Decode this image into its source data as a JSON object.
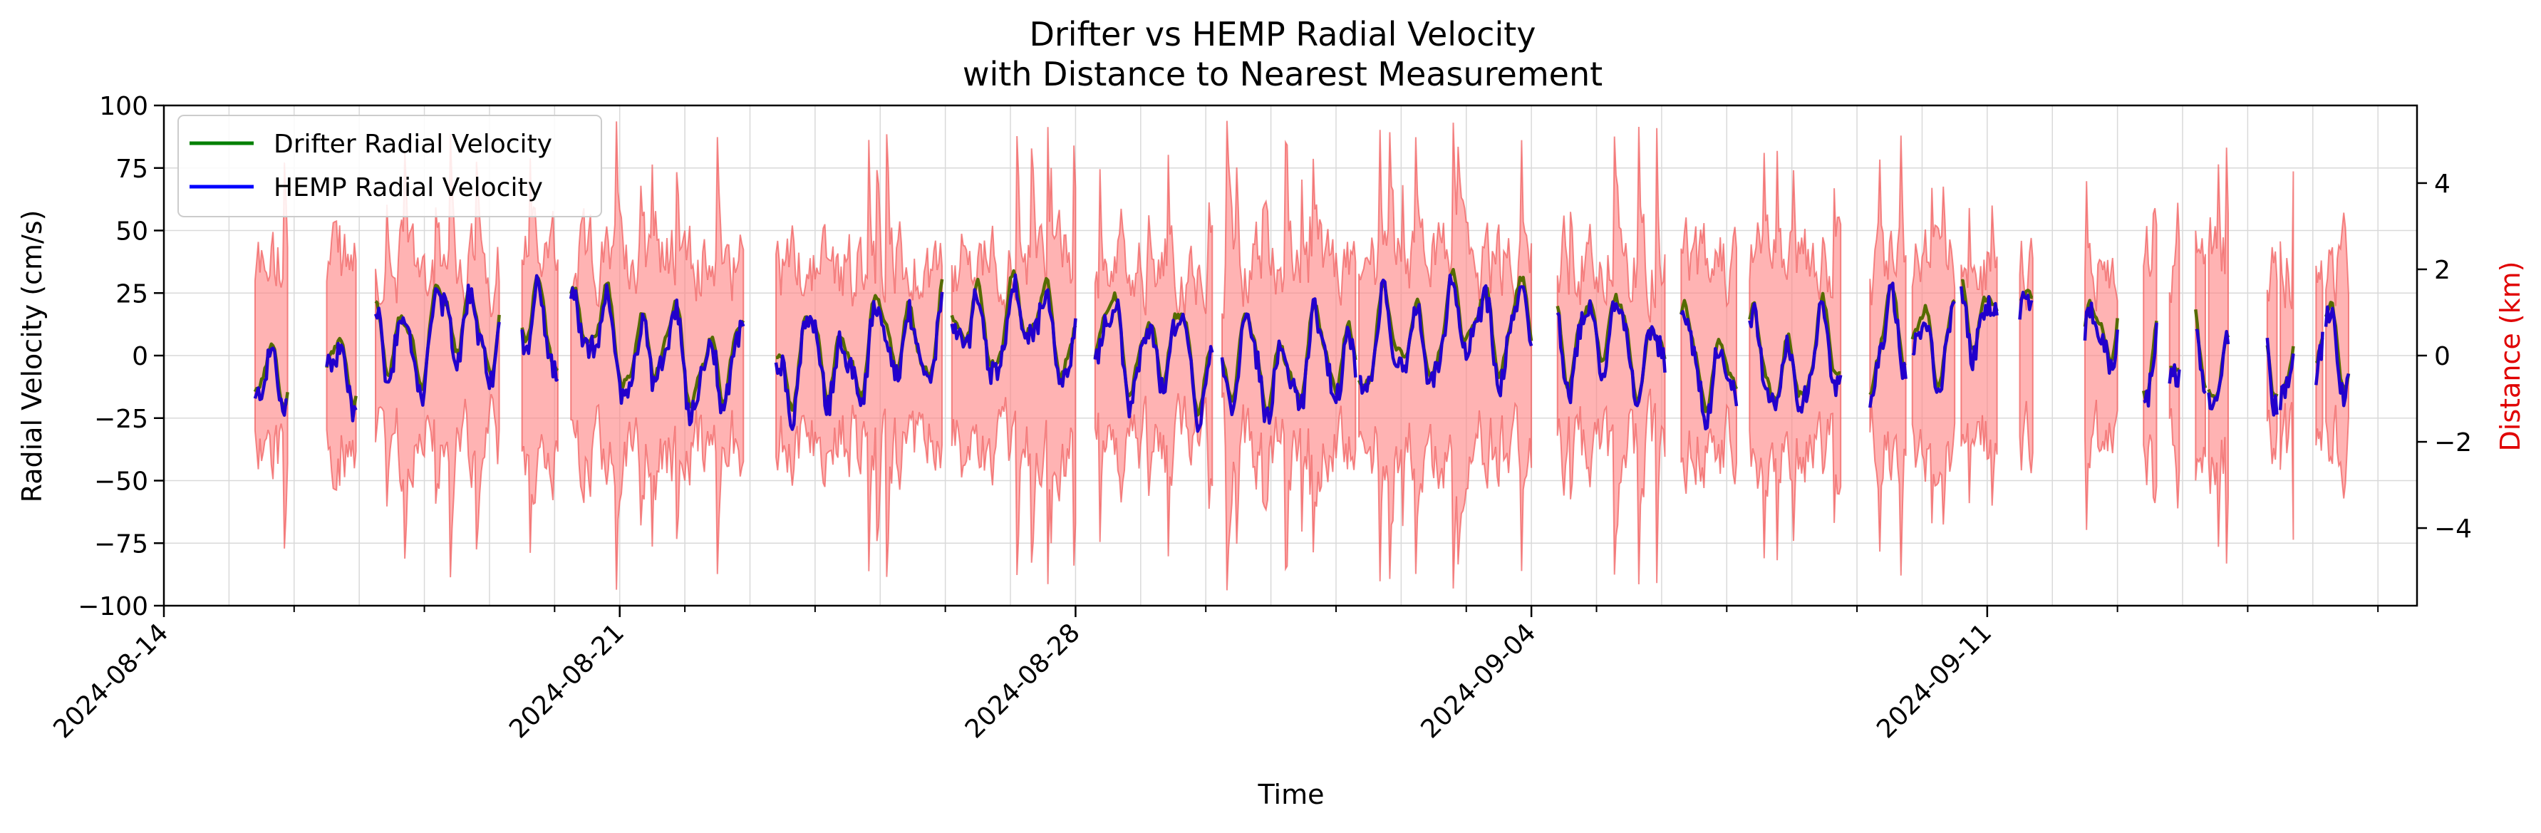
{
  "chart_data": {
    "type": "line",
    "title_line1": "Drifter vs HEMP Radial Velocity",
    "title_line2": "with Distance to Nearest Measurement",
    "xlabel": "Time",
    "ylabel": "Radial Velocity (cm/s)",
    "ylabel_right": "Distance (km)",
    "x_range_days": [
      0,
      34.6
    ],
    "ylim": [
      -100,
      100
    ],
    "ylim_right": [
      -5.8,
      5.8
    ],
    "x_ticks": [
      {
        "day": 0,
        "label": "2024-08-14"
      },
      {
        "day": 7,
        "label": "2024-08-21"
      },
      {
        "day": 14,
        "label": "2024-08-28"
      },
      {
        "day": 21,
        "label": "2024-09-04"
      },
      {
        "day": 28,
        "label": "2024-09-11"
      }
    ],
    "y_ticks": [
      "100",
      "75",
      "50",
      "25",
      "0",
      "−25",
      "−50",
      "−75",
      "−100"
    ],
    "y_tick_values": [
      100,
      75,
      50,
      25,
      0,
      -25,
      -50,
      -75,
      -100
    ],
    "y_ticks_right": [
      "4",
      "2",
      "0",
      "−2",
      "−4"
    ],
    "y_tick_values_right": [
      4,
      2,
      0,
      -2,
      -4
    ],
    "legend": {
      "placement": "top-left",
      "items": [
        "Drifter Radial Velocity",
        "HEMP Radial Velocity"
      ]
    },
    "colors": {
      "drifter": "#556b00",
      "drifter_legend": "#008000",
      "hemp": "#2200cc",
      "hemp_legend": "#0000ff",
      "distance_fill": "#ff8080",
      "distance_edge": "#f05a5a"
    },
    "segments": [
      {
        "start": 1.4,
        "end": 1.9
      },
      {
        "start": 2.5,
        "end": 2.95
      },
      {
        "start": 3.25,
        "end": 5.15
      },
      {
        "start": 5.5,
        "end": 6.05
      },
      {
        "start": 6.25,
        "end": 8.9
      },
      {
        "start": 9.4,
        "end": 11.95
      },
      {
        "start": 12.1,
        "end": 14.0
      },
      {
        "start": 14.3,
        "end": 16.1
      },
      {
        "start": 16.25,
        "end": 18.3
      },
      {
        "start": 18.35,
        "end": 21.0
      },
      {
        "start": 21.4,
        "end": 23.05
      },
      {
        "start": 23.3,
        "end": 24.15
      },
      {
        "start": 24.35,
        "end": 25.75
      },
      {
        "start": 26.2,
        "end": 26.75
      },
      {
        "start": 26.85,
        "end": 27.5
      },
      {
        "start": 27.6,
        "end": 28.15
      },
      {
        "start": 28.5,
        "end": 28.7
      },
      {
        "start": 29.5,
        "end": 30.0
      },
      {
        "start": 30.4,
        "end": 30.6
      },
      {
        "start": 30.8,
        "end": 30.95
      },
      {
        "start": 31.2,
        "end": 31.35
      },
      {
        "start": 31.4,
        "end": 31.7
      },
      {
        "start": 32.3,
        "end": 32.45
      },
      {
        "start": 32.5,
        "end": 32.7
      },
      {
        "start": 33.05,
        "end": 33.15
      },
      {
        "start": 33.2,
        "end": 33.55
      }
    ]
  }
}
